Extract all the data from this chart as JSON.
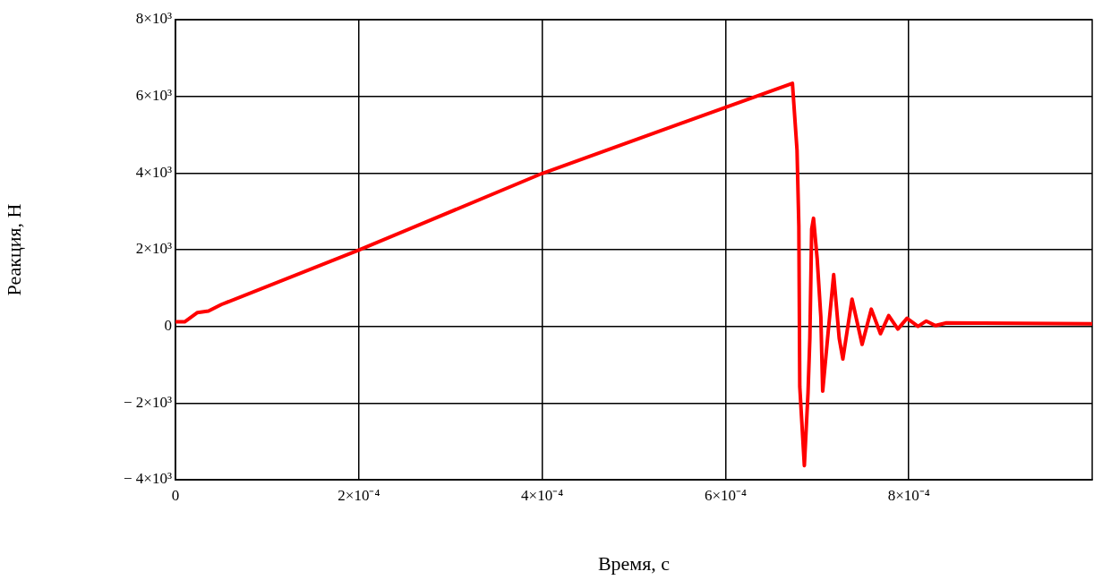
{
  "chart_data": {
    "type": "line",
    "xlabel": "Время, с",
    "ylabel": "Реакция, Н",
    "x": [
      0,
      1e-05,
      2.4e-05,
      3.6e-05,
      5e-05,
      0.0002,
      0.0004,
      0.000673,
      0.000678,
      0.00068,
      0.000681,
      0.000686,
      0.00069,
      0.000692,
      0.000694,
      0.000696,
      0.0007,
      0.000704,
      0.000706,
      0.000712,
      0.000718,
      0.000724,
      0.000728,
      0.000738,
      0.000749,
      0.000759,
      0.000769,
      0.000778,
      0.000788,
      0.000798,
      0.00081,
      0.000819,
      0.000829,
      0.000841,
      0.001
    ],
    "series": [
      {
        "color": "#ff0000",
        "values": [
          120,
          120,
          360,
          400,
          570,
          1990,
          3990,
          6340,
          4600,
          2610,
          -1570,
          -3630,
          -1730,
          -310,
          2540,
          2820,
          1760,
          240,
          -1690,
          -140,
          1350,
          -310,
          -850,
          710,
          -470,
          450,
          -190,
          280,
          -70,
          210,
          0,
          140,
          20,
          90,
          70
        ]
      }
    ],
    "xlim": [
      0,
      0.001
    ],
    "xticks": [
      0,
      {
        "value": 0.0002,
        "label": "2×10⁻⁴"
      },
      {
        "value": 0.0004,
        "label": "4×10⁻⁴"
      },
      {
        "value": 0.0006,
        "label": "6×10⁻⁴"
      },
      {
        "value": 0.0008,
        "label": "8×10⁻⁴"
      }
    ],
    "ylim": [
      -4000,
      8000
    ],
    "yticks": [
      {
        "value": -4000,
        "label": "− 4×10³"
      },
      {
        "value": -2000,
        "label": "− 2×10³"
      },
      0,
      {
        "value": 2000,
        "label": "2×10³"
      },
      {
        "value": 4000,
        "label": "4×10³"
      },
      {
        "value": 6000,
        "label": "6×10³"
      },
      {
        "value": 8000,
        "label": "8×10³"
      }
    ],
    "grid": true,
    "legend": false,
    "marker": "none",
    "line_style": "solid"
  }
}
